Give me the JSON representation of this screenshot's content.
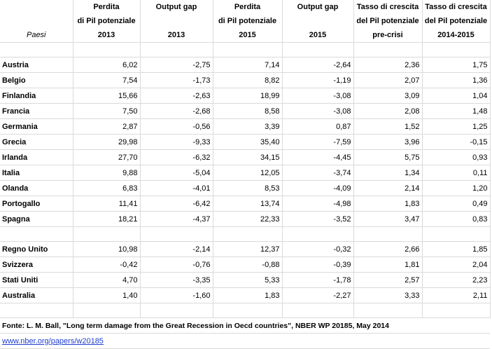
{
  "header": {
    "row1": [
      "",
      "Perdita",
      "Output gap",
      "Perdita",
      "Output gap",
      "Tasso di crescita",
      "Tasso di crescita"
    ],
    "row2": [
      "",
      "di Pil potenziale",
      "",
      "di Pil potenziale",
      "",
      "del Pil potenziale",
      "del Pil potenziale"
    ],
    "row3": [
      "Paesi",
      "2013",
      "2013",
      "2015",
      "2015",
      "pre-crisi",
      "2014-2015"
    ]
  },
  "group1": [
    {
      "country": "Austria",
      "perdita2013": "6,02",
      "gap2013": "-2,75",
      "perdita2015": "7,14",
      "gap2015": "-2,64",
      "pre": "2,36",
      "g1415": "1,75"
    },
    {
      "country": "Belgio",
      "perdita2013": "7,54",
      "gap2013": "-1,73",
      "perdita2015": "8,82",
      "gap2015": "-1,19",
      "pre": "2,07",
      "g1415": "1,36"
    },
    {
      "country": "Finlandia",
      "perdita2013": "15,66",
      "gap2013": "-2,63",
      "perdita2015": "18,99",
      "gap2015": "-3,08",
      "pre": "3,09",
      "g1415": "1,04"
    },
    {
      "country": "Francia",
      "perdita2013": "7,50",
      "gap2013": "-2,68",
      "perdita2015": "8,58",
      "gap2015": "-3,08",
      "pre": "2,08",
      "g1415": "1,48"
    },
    {
      "country": "Germania",
      "perdita2013": "2,87",
      "gap2013": "-0,56",
      "perdita2015": "3,39",
      "gap2015": "0,87",
      "pre": "1,52",
      "g1415": "1,25"
    },
    {
      "country": "Grecia",
      "perdita2013": "29,98",
      "gap2013": "-9,33",
      "perdita2015": "35,40",
      "gap2015": "-7,59",
      "pre": "3,96",
      "g1415": "-0,15"
    },
    {
      "country": "Irlanda",
      "perdita2013": "27,70",
      "gap2013": "-6,32",
      "perdita2015": "34,15",
      "gap2015": "-4,45",
      "pre": "5,75",
      "g1415": "0,93"
    },
    {
      "country": "Italia",
      "perdita2013": "9,88",
      "gap2013": "-5,04",
      "perdita2015": "12,05",
      "gap2015": "-3,74",
      "pre": "1,34",
      "g1415": "0,11"
    },
    {
      "country": "Olanda",
      "perdita2013": "6,83",
      "gap2013": "-4,01",
      "perdita2015": "8,53",
      "gap2015": "-4,09",
      "pre": "2,14",
      "g1415": "1,20"
    },
    {
      "country": "Portogallo",
      "perdita2013": "11,41",
      "gap2013": "-6,42",
      "perdita2015": "13,74",
      "gap2015": "-4,98",
      "pre": "1,83",
      "g1415": "0,49"
    },
    {
      "country": "Spagna",
      "perdita2013": "18,21",
      "gap2013": "-4,37",
      "perdita2015": "22,33",
      "gap2015": "-3,52",
      "pre": "3,47",
      "g1415": "0,83"
    }
  ],
  "group2": [
    {
      "country": "Regno Unito",
      "perdita2013": "10,98",
      "gap2013": "-2,14",
      "perdita2015": "12,37",
      "gap2015": "-0,32",
      "pre": "2,66",
      "g1415": "1,85"
    },
    {
      "country": "Svizzera",
      "perdita2013": "-0,42",
      "gap2013": "-0,76",
      "perdita2015": "-0,88",
      "gap2015": "-0,39",
      "pre": "1,81",
      "g1415": "2,04"
    },
    {
      "country": "Stati Uniti",
      "perdita2013": "4,70",
      "gap2013": "-3,35",
      "perdita2015": "5,33",
      "gap2015": "-1,78",
      "pre": "2,57",
      "g1415": "2,23"
    },
    {
      "country": "Australia",
      "perdita2013": "1,40",
      "gap2013": "-1,60",
      "perdita2015": "1,83",
      "gap2015": "-2,27",
      "pre": "3,33",
      "g1415": "2,11"
    }
  ],
  "source": {
    "text": "Fonte: L. M. Ball, \"Long term damage from the Great Recession in Oecd countries\", NBER WP 20185, May 2014",
    "link": "www.nber.org/papers/w20185"
  },
  "colors": {
    "link": "#1f3fd0",
    "grid": "#dadada"
  }
}
